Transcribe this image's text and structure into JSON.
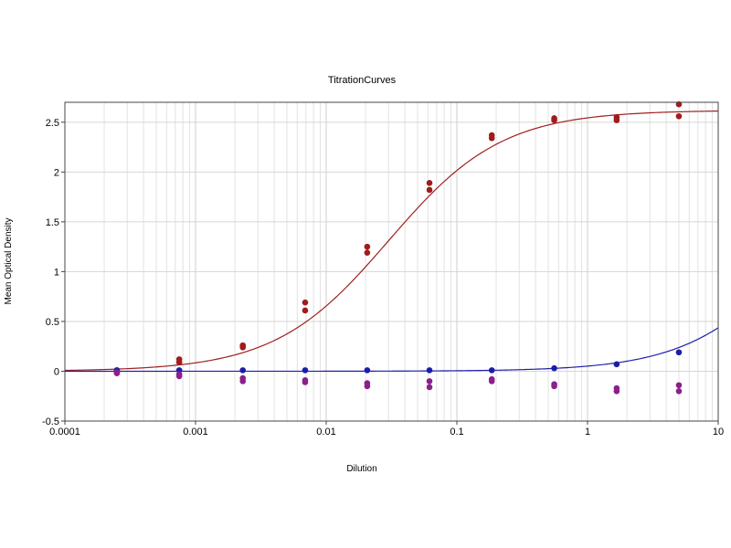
{
  "chart_data": {
    "type": "scatter",
    "title": "TitrationCurves",
    "xlabel": "Dilution",
    "ylabel": "Mean Optical Density",
    "xscale": "log",
    "xlim": [
      0.0001,
      10
    ],
    "ylim": [
      -0.5,
      2.7
    ],
    "x_ticks": [
      0.0001,
      0.001,
      0.01,
      0.1,
      1,
      10
    ],
    "x_tick_labels": [
      "0.0001",
      "0.001",
      "0.01",
      "0.1",
      "1",
      "10"
    ],
    "y_ticks": [
      -0.5,
      0,
      0.5,
      1,
      1.5,
      2,
      2.5
    ],
    "y_tick_labels": [
      "-0.5",
      "0",
      "0.5",
      "1",
      "1.5",
      "2",
      "2.5"
    ],
    "grid": true,
    "legend": "none",
    "series": [
      {
        "color": "#a01c1c",
        "x": [
          0.00025,
          0.00025,
          0.00075,
          0.00075,
          0.0023,
          0.0023,
          0.0069,
          0.0069,
          0.0206,
          0.0206,
          0.0617,
          0.0617,
          0.185,
          0.185,
          0.556,
          0.556,
          1.67,
          1.67,
          5.0,
          5.0
        ],
        "y": [
          0.01,
          -0.01,
          0.12,
          0.09,
          0.26,
          0.24,
          0.69,
          0.61,
          1.25,
          1.19,
          1.89,
          1.82,
          2.37,
          2.34,
          2.54,
          2.52,
          2.55,
          2.52,
          2.68,
          2.56
        ]
      },
      {
        "color": "#1c1ca8",
        "x": [
          0.00025,
          0.00075,
          0.0023,
          0.0069,
          0.0206,
          0.0617,
          0.185,
          0.556,
          1.67,
          5.0
        ],
        "y": [
          0.01,
          0.01,
          0.01,
          0.01,
          0.01,
          0.01,
          0.01,
          0.03,
          0.07,
          0.19
        ]
      },
      {
        "color": "#8b1f8b",
        "x": [
          0.00025,
          0.00025,
          0.00075,
          0.00075,
          0.0023,
          0.0023,
          0.0069,
          0.0069,
          0.0206,
          0.0206,
          0.0617,
          0.0617,
          0.185,
          0.185,
          0.556,
          0.556,
          1.67,
          1.67,
          5.0,
          5.0
        ],
        "y": [
          -0.01,
          -0.02,
          -0.03,
          -0.05,
          -0.07,
          -0.1,
          -0.09,
          -0.11,
          -0.12,
          -0.15,
          -0.1,
          -0.16,
          -0.08,
          -0.1,
          -0.13,
          -0.15,
          -0.17,
          -0.2,
          -0.14,
          -0.2
        ]
      }
    ],
    "curves": [
      {
        "color": "#a02020",
        "model": "4PL",
        "bottom": 0.0,
        "top": 2.62,
        "ec50": 0.03,
        "slope": 1.0
      },
      {
        "color": "#2020a8",
        "model": "4PL",
        "bottom": 0.0,
        "top": 2.62,
        "ec50": 50,
        "slope": 1.0
      }
    ]
  }
}
